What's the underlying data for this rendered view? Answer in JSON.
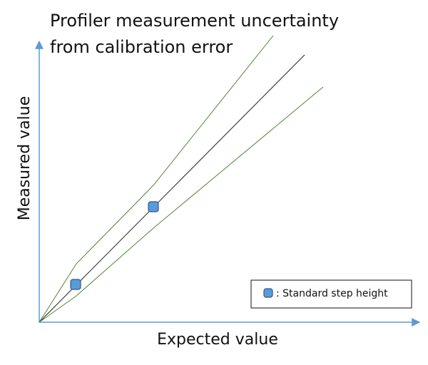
{
  "title": {
    "lines": [
      "Profiler measurement uncertainty",
      "from calibration error"
    ]
  },
  "axes": {
    "x_label": "Expected value",
    "y_label": "Measured value"
  },
  "legend": {
    "label": ": Standard step height"
  }
}
